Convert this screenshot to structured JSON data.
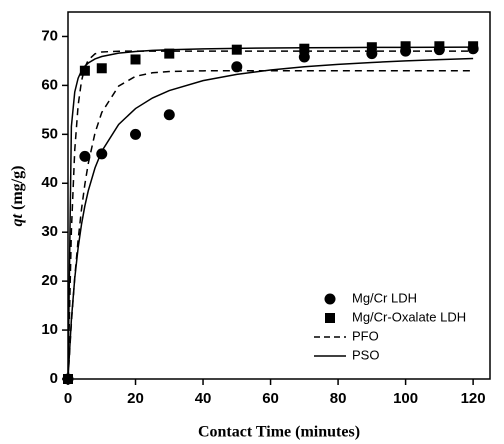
{
  "chart_data": {
    "type": "scatter",
    "x_label": "Contact Time (minutes)",
    "y_label_symbol": "qt",
    "y_label_unit": "(mg/g)",
    "xlim": [
      0,
      125
    ],
    "ylim": [
      0,
      75
    ],
    "xticks": [
      0,
      20,
      40,
      60,
      80,
      100,
      120
    ],
    "yticks": [
      0,
      10,
      20,
      30,
      40,
      50,
      60,
      70
    ],
    "legend_position": "lower right",
    "color": "#000000",
    "series": [
      {
        "name": "Mg/Cr LDH",
        "marker": "circle",
        "x": [
          0,
          5,
          10,
          20,
          30,
          50,
          70,
          90,
          100,
          110,
          120
        ],
        "values": [
          0,
          45.5,
          46,
          50,
          54,
          63.8,
          65.8,
          66.5,
          67,
          67.3,
          67.5
        ]
      },
      {
        "name": "Mg/Cr-Oxalate LDH",
        "marker": "square",
        "x": [
          0,
          5,
          10,
          20,
          30,
          50,
          70,
          90,
          100,
          110,
          120
        ],
        "values": [
          0,
          63,
          63.5,
          65.3,
          66.5,
          67.3,
          67.5,
          67.8,
          68,
          68,
          68
        ]
      }
    ],
    "fit_x": [
      0,
      1,
      2,
      3,
      4,
      5,
      6,
      8,
      10,
      15,
      20,
      25,
      30,
      40,
      50,
      60,
      70,
      80,
      90,
      100,
      110,
      120
    ],
    "fits": [
      {
        "name": "PFO",
        "dashed": true,
        "curves": [
          {
            "values": [
              0,
              11.42,
              20.77,
              28.43,
              34.69,
              39.82,
              44.02,
              50.28,
              54.47,
              59.86,
              61.85,
              62.58,
              62.84,
              62.98,
              63,
              63,
              63,
              63,
              63,
              63,
              63,
              63
            ]
          },
          {
            "values": [
              0,
              30.23,
              46.82,
              55.92,
              60.92,
              63.66,
              65.17,
              66.45,
              66.83,
              66.99,
              67,
              67,
              67,
              67,
              67,
              67,
              67,
              67,
              67,
              67,
              67,
              67
            ]
          }
        ]
      },
      {
        "name": "PSO",
        "dashed": false,
        "curves": [
          {
            "values": [
              0,
              12.12,
              20.58,
              26.81,
              31.6,
              35.39,
              38.46,
              43.15,
              46.55,
              52.02,
              55.27,
              57.42,
              58.94,
              60.98,
              62.26,
              63.15,
              63.8,
              64.3,
              64.69,
              65,
              65.27,
              65.49
            ]
          },
          {
            "values": [
              0,
              51.58,
              58.66,
              61.47,
              62.99,
              63.93,
              64.57,
              65.4,
              65.9,
              66.59,
              66.93,
              67.15,
              67.29,
              67.46,
              67.57,
              67.64,
              67.69,
              67.73,
              67.76,
              67.78,
              67.8,
              67.82
            ]
          }
        ]
      }
    ]
  }
}
